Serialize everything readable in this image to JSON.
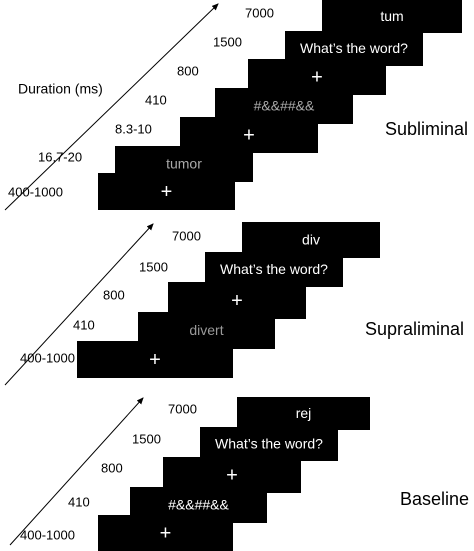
{
  "panels": [
    {
      "axis_label": "Duration (ms)",
      "condition": "Subliminal",
      "frames": [
        {
          "duration": "7000",
          "content": "tum"
        },
        {
          "duration": "1500",
          "content": "What’s the word?"
        },
        {
          "duration": "800",
          "content": "+"
        },
        {
          "duration": "410",
          "content": "#&&##&&"
        },
        {
          "duration": "8.3-10",
          "content": "+"
        },
        {
          "duration": "16.7-20",
          "content": "tumor"
        },
        {
          "duration": "400-1000",
          "content": "+"
        }
      ]
    },
    {
      "condition": "Supraliminal",
      "frames": [
        {
          "duration": "7000",
          "content": "div"
        },
        {
          "duration": "1500",
          "content": "What’s the word?"
        },
        {
          "duration": "800",
          "content": "+"
        },
        {
          "duration": "410",
          "content": "divert"
        },
        {
          "duration": "400-1000",
          "content": "+"
        }
      ]
    },
    {
      "condition": "Baseline",
      "frames": [
        {
          "duration": "7000",
          "content": "rej"
        },
        {
          "duration": "1500",
          "content": "What’s the word?"
        },
        {
          "duration": "800",
          "content": "+"
        },
        {
          "duration": "410",
          "content": "#&&##&&"
        },
        {
          "duration": "400-1000",
          "content": "+"
        }
      ]
    }
  ]
}
